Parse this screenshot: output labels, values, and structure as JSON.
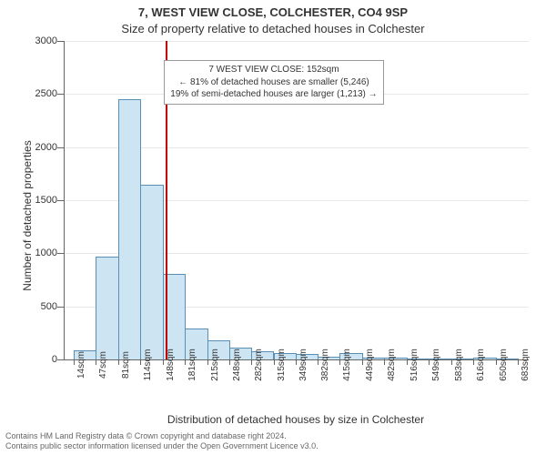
{
  "title_line1": "7, WEST VIEW CLOSE, COLCHESTER, CO4 9SP",
  "title_line2": "Size of property relative to detached houses in Colchester",
  "y_axis_label": "Number of detached properties",
  "x_axis_title": "Distribution of detached houses by size in Colchester",
  "attribution_line1": "Contains HM Land Registry data © Crown copyright and database right 2024.",
  "attribution_line2": "Contains public sector information licensed under the Open Government Licence v3.0.",
  "chart": {
    "type": "histogram",
    "background_color": "#ffffff",
    "grid_color": "#e8e8e8",
    "axis_color": "#666666",
    "text_color": "#333333",
    "bar_fill": "#cde5f3",
    "bar_stroke": "#5a8fb5",
    "marker_color": "#c00000",
    "ylim": [
      0,
      3000
    ],
    "ytick_step": 500,
    "yticks": [
      0,
      500,
      1000,
      1500,
      2000,
      2500,
      3000
    ],
    "x_range_sqm": [
      0,
      700
    ],
    "marker_value_sqm": 152,
    "x_tick_labels": [
      "14sqm",
      "47sqm",
      "81sqm",
      "114sqm",
      "148sqm",
      "181sqm",
      "215sqm",
      "248sqm",
      "282sqm",
      "315sqm",
      "349sqm",
      "382sqm",
      "415sqm",
      "449sqm",
      "482sqm",
      "516sqm",
      "549sqm",
      "583sqm",
      "616sqm",
      "650sqm",
      "683sqm"
    ],
    "x_tick_positions_sqm": [
      14,
      47,
      81,
      114,
      148,
      181,
      215,
      248,
      282,
      315,
      349,
      382,
      415,
      449,
      482,
      516,
      549,
      583,
      616,
      650,
      683
    ],
    "bars": [
      {
        "start_sqm": 14,
        "end_sqm": 47,
        "count": 80
      },
      {
        "start_sqm": 47,
        "end_sqm": 81,
        "count": 960
      },
      {
        "start_sqm": 81,
        "end_sqm": 114,
        "count": 2440
      },
      {
        "start_sqm": 114,
        "end_sqm": 148,
        "count": 1640
      },
      {
        "start_sqm": 148,
        "end_sqm": 181,
        "count": 800
      },
      {
        "start_sqm": 181,
        "end_sqm": 215,
        "count": 280
      },
      {
        "start_sqm": 215,
        "end_sqm": 248,
        "count": 170
      },
      {
        "start_sqm": 248,
        "end_sqm": 282,
        "count": 100
      },
      {
        "start_sqm": 282,
        "end_sqm": 315,
        "count": 70
      },
      {
        "start_sqm": 315,
        "end_sqm": 349,
        "count": 55
      },
      {
        "start_sqm": 349,
        "end_sqm": 382,
        "count": 40
      },
      {
        "start_sqm": 382,
        "end_sqm": 415,
        "count": 15
      },
      {
        "start_sqm": 415,
        "end_sqm": 449,
        "count": 50
      },
      {
        "start_sqm": 449,
        "end_sqm": 482,
        "count": 5
      },
      {
        "start_sqm": 482,
        "end_sqm": 516,
        "count": 5
      },
      {
        "start_sqm": 516,
        "end_sqm": 549,
        "count": 0
      },
      {
        "start_sqm": 549,
        "end_sqm": 583,
        "count": 0
      },
      {
        "start_sqm": 583,
        "end_sqm": 616,
        "count": 0
      },
      {
        "start_sqm": 616,
        "end_sqm": 650,
        "count": 5
      },
      {
        "start_sqm": 650,
        "end_sqm": 683,
        "count": 0
      }
    ],
    "annotation": {
      "line1": "7 WEST VIEW CLOSE: 152sqm",
      "line2": "← 81% of detached houses are smaller (5,246)",
      "line3": "19% of semi-detached houses are larger (1,213) →",
      "left_sqm": 150,
      "top_y": 2820
    },
    "title_fontsize": 13,
    "label_fontsize": 12,
    "tick_fontsize": 11,
    "xtick_fontsize": 10,
    "annotation_fontsize": 10,
    "attribution_fontsize": 9
  }
}
